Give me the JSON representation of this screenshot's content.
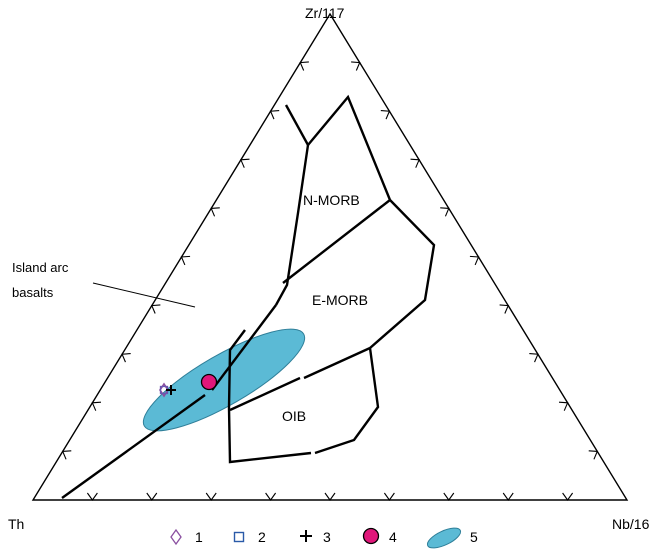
{
  "diagram": {
    "type": "ternary-discrimination",
    "vertices": {
      "top": "Zr/117",
      "left": "Th",
      "right": "Nb/16"
    },
    "fields": {
      "n_morb": "N-MORB",
      "e_morb": "E-MORB",
      "oib": "OIB"
    },
    "annotation": {
      "line1": "Island arc",
      "line2": "basalts"
    },
    "samples": [
      {
        "group": "4",
        "symbol": "filled-circle",
        "color": "#e0177a"
      },
      {
        "group": "1",
        "symbol": "diamond",
        "color": "#8a4fa0"
      },
      {
        "group": "3",
        "symbol": "plus",
        "color": "#000000"
      }
    ],
    "field_5": {
      "color": "#5bbad5"
    }
  },
  "legend": {
    "items": [
      {
        "symbol": "diamond",
        "label": "1",
        "color": "#8a4fa0"
      },
      {
        "symbol": "square",
        "label": "2",
        "color": "#2a5aa8"
      },
      {
        "symbol": "plus",
        "label": "3",
        "color": "#000000"
      },
      {
        "symbol": "filled-circle",
        "label": "4",
        "color": "#e0177a"
      },
      {
        "symbol": "ellipse",
        "label": "5",
        "color": "#5bbad5"
      }
    ]
  }
}
